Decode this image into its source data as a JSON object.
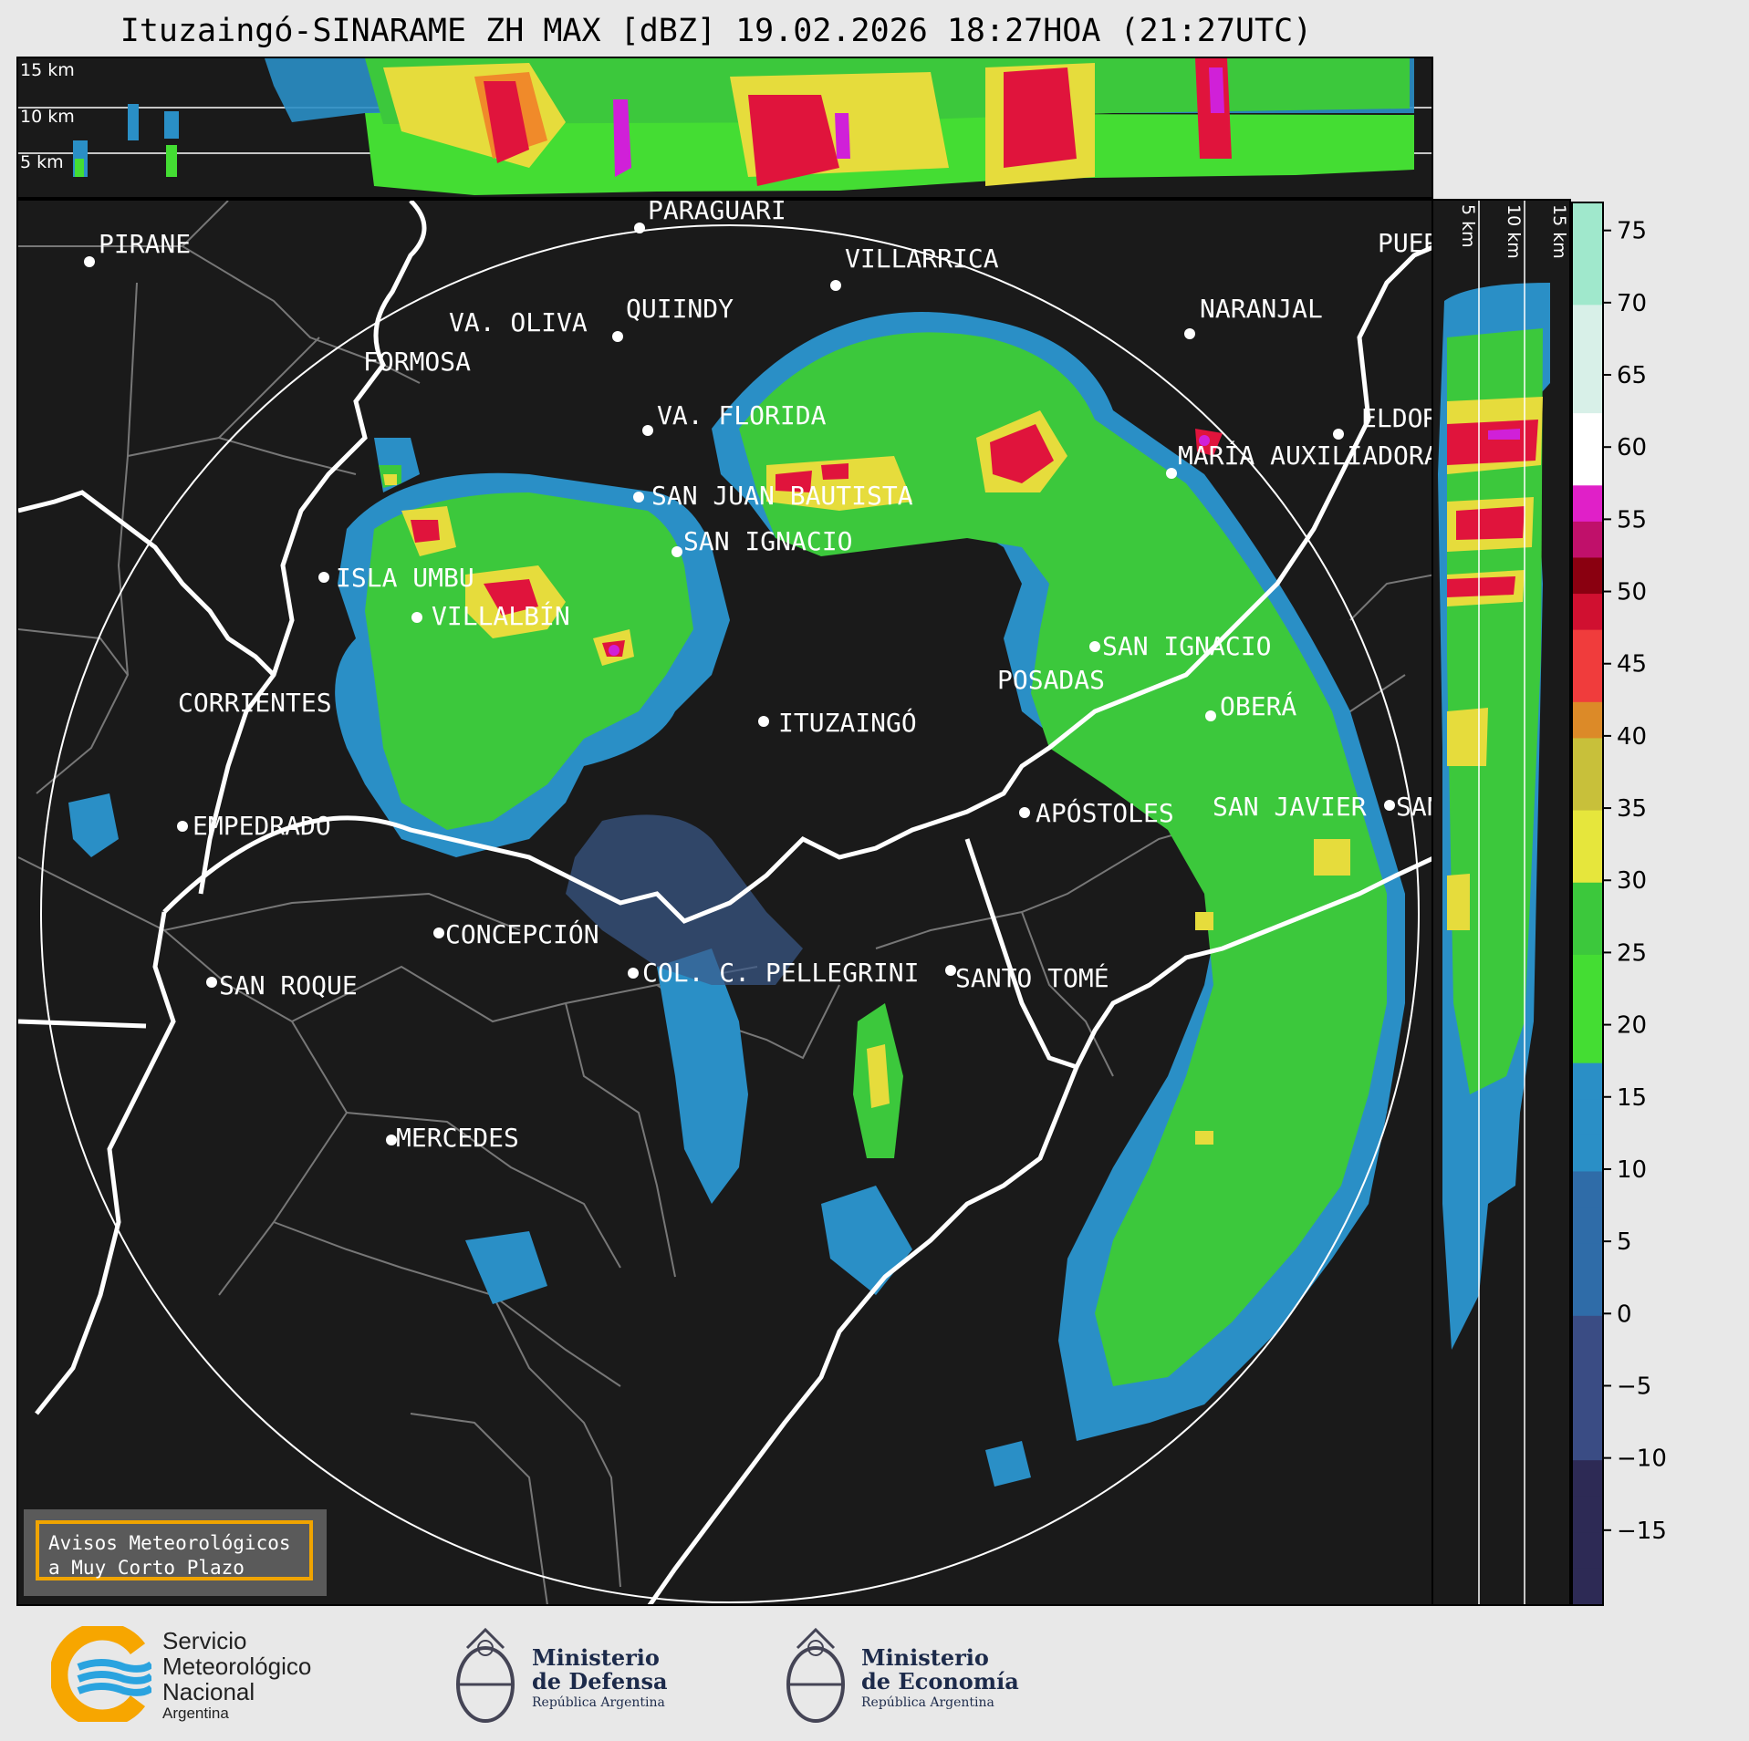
{
  "title": "Ituzaingó-SINARAME ZH MAX [dBZ] 19.02.2026 18:27HOA (21:27UTC)",
  "top_panel": {
    "height_labels": [
      "15 km",
      "10 km",
      "5 km"
    ]
  },
  "side_panel": {
    "height_labels": [
      "5 km",
      "10 km",
      "15 km"
    ]
  },
  "colorbar": {
    "ticks": [
      "75",
      "70",
      "65",
      "60",
      "55",
      "50",
      "45",
      "40",
      "35",
      "30",
      "25",
      "20",
      "15",
      "10",
      "5",
      "0",
      "−5",
      "−10",
      "−15"
    ],
    "range": [
      -20,
      77
    ]
  },
  "cities": [
    {
      "name": "PIRANE"
    },
    {
      "name": "PARAGUARÍ"
    },
    {
      "name": "VILLARRICA"
    },
    {
      "name": "QUIINDY"
    },
    {
      "name": "VA. OLIVA"
    },
    {
      "name": "NARANJAL"
    },
    {
      "name": "FORMOSA"
    },
    {
      "name": "VA. FLORIDA"
    },
    {
      "name": "ELDORADO"
    },
    {
      "name": "MARÍA AUXILIADORA"
    },
    {
      "name": "SAN JUAN BAUTISTA"
    },
    {
      "name": "SAN IGNACIO"
    },
    {
      "name": "ISLA UMBU"
    },
    {
      "name": "VILLALBÍN"
    },
    {
      "name": "SAN IGNACIO"
    },
    {
      "name": "POSADAS"
    },
    {
      "name": "CORRIENTES"
    },
    {
      "name": "ITUZAINGÓ"
    },
    {
      "name": "OBERÁ"
    },
    {
      "name": "APÓSTOLES"
    },
    {
      "name": "SAN JAVIER"
    },
    {
      "name": "SAN"
    },
    {
      "name": "EMPEDRADO"
    },
    {
      "name": "CONCEPCIÓN"
    },
    {
      "name": "SAN ROQUE"
    },
    {
      "name": "COL. C. PELLEGRINI"
    },
    {
      "name": "SANTO TOMÉ"
    },
    {
      "name": "MERCEDES"
    },
    {
      "name": "PUERTO"
    }
  ],
  "warning_box": {
    "line1": "Avisos Meteorológicos",
    "line2": "a Muy Corto Plazo"
  },
  "footer": {
    "smn": {
      "line1": "Servicio",
      "line2": "Meteorológico",
      "line3": "Nacional",
      "line4": "Argentina"
    },
    "defensa": {
      "line1": "Ministerio",
      "line2": "de Defensa",
      "line3": "República Argentina"
    },
    "economia": {
      "line1": "Ministerio",
      "line2": "de Economía",
      "line3": "República Argentina"
    }
  },
  "colors": {
    "map_bg": "#1a1a1a",
    "accent": "#f0a400",
    "smn_blue": "#2aa3df",
    "smn_orange": "#f7a600"
  }
}
